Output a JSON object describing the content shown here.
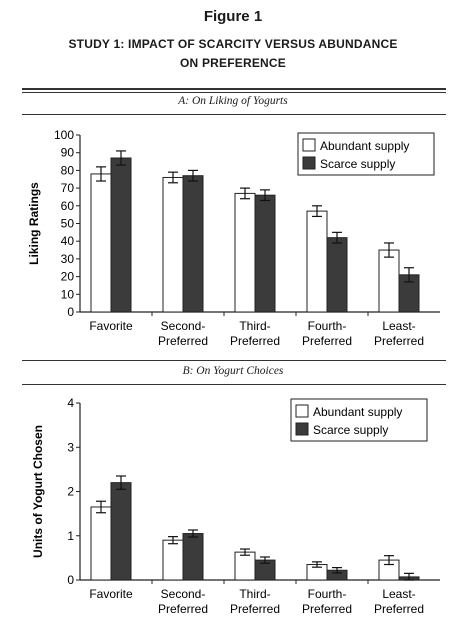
{
  "figure": {
    "title": "Figure 1",
    "subtitle_line1": "STUDY 1: IMPACT OF SCARCITY VERSUS ABUNDANCE",
    "subtitle_line2": "ON PREFERENCE"
  },
  "colors": {
    "abundant": "#ffffff",
    "scarce": "#3b3b3b",
    "axis": "#222222"
  },
  "chart_data": [
    {
      "type": "bar",
      "panel_label": "A: On Liking of Yogurts",
      "title": "",
      "xlabel": "",
      "ylabel": "Liking Ratings",
      "ylim": [
        0,
        100
      ],
      "yticks": [
        0,
        10,
        20,
        30,
        40,
        50,
        60,
        70,
        80,
        90,
        100
      ],
      "grid": false,
      "legend_position": "top-right",
      "categories": [
        [
          "Favorite"
        ],
        [
          "Second-",
          "Preferred"
        ],
        [
          "Third-",
          "Preferred"
        ],
        [
          "Fourth-",
          "Preferred"
        ],
        [
          "Least-",
          "Preferred"
        ]
      ],
      "series": [
        {
          "name": "Abundant supply",
          "values": [
            78,
            76,
            67,
            57,
            35
          ],
          "errors": [
            4,
            3,
            3,
            3,
            4
          ]
        },
        {
          "name": "Scarce supply",
          "values": [
            87,
            77,
            66,
            42,
            21
          ],
          "errors": [
            4,
            3,
            3,
            3,
            4
          ]
        }
      ]
    },
    {
      "type": "bar",
      "panel_label": "B: On Yogurt Choices",
      "title": "",
      "xlabel": "",
      "ylabel": "Units of Yogurt Chosen",
      "ylim": [
        0,
        4
      ],
      "yticks": [
        0,
        1,
        2,
        3,
        4
      ],
      "grid": false,
      "legend_position": "top-right",
      "categories": [
        [
          "Favorite"
        ],
        [
          "Second-",
          "Preferred"
        ],
        [
          "Third-",
          "Preferred"
        ],
        [
          "Fourth-",
          "Preferred"
        ],
        [
          "Least-",
          "Preferred"
        ]
      ],
      "series": [
        {
          "name": "Abundant supply",
          "values": [
            1.65,
            0.9,
            0.63,
            0.35,
            0.45
          ],
          "errors": [
            0.13,
            0.08,
            0.07,
            0.06,
            0.1
          ]
        },
        {
          "name": "Scarce supply",
          "values": [
            2.2,
            1.05,
            0.45,
            0.22,
            0.07
          ],
          "errors": [
            0.15,
            0.08,
            0.07,
            0.06,
            0.08
          ]
        }
      ]
    }
  ]
}
